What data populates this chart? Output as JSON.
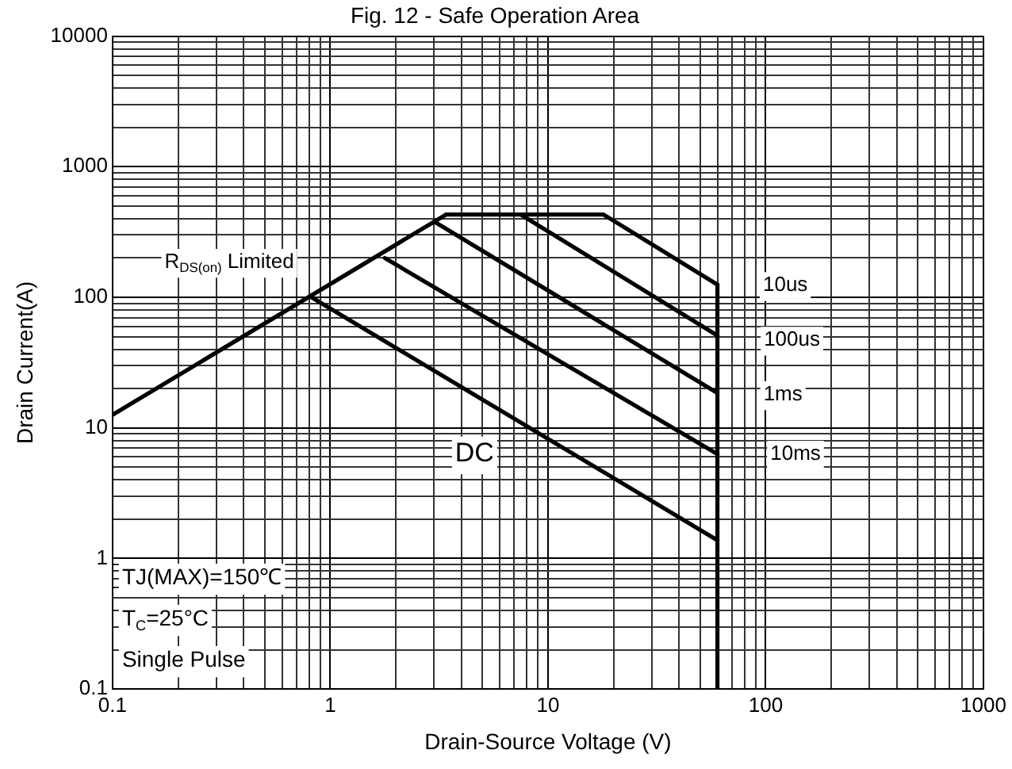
{
  "chart_data": {
    "type": "line",
    "title": "Fig. 12 - Safe Operation Area",
    "xlabel": "Drain-Source Voltage (V)",
    "ylabel": "Drain Current(A)",
    "log": "xy",
    "grid": true,
    "legend": false,
    "marker": "none",
    "line_style": "solid",
    "xlim": [
      0.1,
      1000
    ],
    "ylim": [
      0.1,
      10000
    ],
    "xticks": [
      0.1,
      {
        "value": 0.2,
        "label": null
      },
      {
        "value": 0.3,
        "label": null
      },
      {
        "value": 0.4,
        "label": null
      },
      {
        "value": 0.5,
        "label": null
      },
      {
        "value": 0.6,
        "label": null
      },
      {
        "value": 0.7,
        "label": null
      },
      {
        "value": 0.8,
        "label": null
      },
      {
        "value": 0.9,
        "label": null
      },
      1,
      {
        "value": 2,
        "label": null
      },
      {
        "value": 3,
        "label": null
      },
      {
        "value": 4,
        "label": null
      },
      {
        "value": 5,
        "label": null
      },
      {
        "value": 6,
        "label": null
      },
      {
        "value": 7,
        "label": null
      },
      {
        "value": 8,
        "label": null
      },
      {
        "value": 9,
        "label": null
      },
      10,
      {
        "value": 20,
        "label": null
      },
      {
        "value": 30,
        "label": null
      },
      {
        "value": 40,
        "label": null
      },
      {
        "value": 50,
        "label": null
      },
      {
        "value": 60,
        "label": null
      },
      {
        "value": 70,
        "label": null
      },
      {
        "value": 80,
        "label": null
      },
      {
        "value": 90,
        "label": null
      },
      100,
      {
        "value": 200,
        "label": null
      },
      {
        "value": 300,
        "label": null
      },
      {
        "value": 400,
        "label": null
      },
      {
        "value": 500,
        "label": null
      },
      {
        "value": 600,
        "label": null
      },
      {
        "value": 700,
        "label": null
      },
      {
        "value": 800,
        "label": null
      },
      {
        "value": 900,
        "label": null
      },
      1000
    ],
    "yticks": [
      0.1,
      {
        "value": 0.2,
        "label": null
      },
      {
        "value": 0.3,
        "label": null
      },
      {
        "value": 0.4,
        "label": null
      },
      {
        "value": 0.5,
        "label": null
      },
      {
        "value": 0.6,
        "label": null
      },
      {
        "value": 0.7,
        "label": null
      },
      {
        "value": 0.8,
        "label": null
      },
      {
        "value": 0.9,
        "label": null
      },
      1,
      {
        "value": 2,
        "label": null
      },
      {
        "value": 3,
        "label": null
      },
      {
        "value": 4,
        "label": null
      },
      {
        "value": 5,
        "label": null
      },
      {
        "value": 6,
        "label": null
      },
      {
        "value": 7,
        "label": null
      },
      {
        "value": 8,
        "label": null
      },
      {
        "value": 9,
        "label": null
      },
      10,
      {
        "value": 20,
        "label": null
      },
      {
        "value": 30,
        "label": null
      },
      {
        "value": 40,
        "label": null
      },
      {
        "value": 50,
        "label": null
      },
      {
        "value": 60,
        "label": null
      },
      {
        "value": 70,
        "label": null
      },
      {
        "value": 80,
        "label": null
      },
      {
        "value": 90,
        "label": null
      },
      100,
      {
        "value": 200,
        "label": null
      },
      {
        "value": 300,
        "label": null
      },
      {
        "value": 400,
        "label": null
      },
      {
        "value": 500,
        "label": null
      },
      {
        "value": 600,
        "label": null
      },
      {
        "value": 700,
        "label": null
      },
      {
        "value": 800,
        "label": null
      },
      {
        "value": 900,
        "label": null
      },
      1000,
      {
        "value": 2000,
        "label": null
      },
      {
        "value": 3000,
        "label": null
      },
      {
        "value": 4000,
        "label": null
      },
      {
        "value": 5000,
        "label": null
      },
      {
        "value": 6000,
        "label": null
      },
      {
        "value": 7000,
        "label": null
      },
      {
        "value": 8000,
        "label": null
      },
      {
        "value": 9000,
        "label": null
      },
      10000
    ],
    "series": [
      {
        "name": "R$_{DS(on)}$ Limited",
        "color": "#000000",
        "x": [
          0.1,
          3.4
        ],
        "values": [
          12.6,
          430
        ]
      },
      {
        "color": "#000000",
        "x": [
          3.4,
          18,
          60
        ],
        "values": [
          430,
          430,
          125
        ]
      },
      {
        "color": "#000000",
        "x": [
          7.5,
          60
        ],
        "values": [
          430,
          51
        ]
      },
      {
        "color": "#000000",
        "x": [
          3,
          60
        ],
        "values": [
          380,
          18.5
        ]
      },
      {
        "color": "#000000",
        "x": [
          1.78,
          60
        ],
        "values": [
          200,
          6.3
        ]
      },
      {
        "color": "#000000",
        "x": [
          0.82,
          60
        ],
        "values": [
          100,
          1.38
        ]
      },
      {
        "color": "#000000",
        "x": [
          60,
          60
        ],
        "values": [
          125,
          0.1
        ]
      }
    ],
    "annotations": [
      {
        "text": "10us",
        "x": 123,
        "y": 123
      },
      {
        "text": "100us",
        "x": 132,
        "y": 47
      },
      {
        "text": "1ms",
        "x": 120,
        "y": 18
      },
      {
        "text": "10ms",
        "x": 137,
        "y": 6.3
      },
      {
        "text": "DC",
        "x": 4.6,
        "y": 6.3
      },
      "TJ(MAX)=150℃",
      "T$_{C}$=25°C",
      "Single Pulse"
    ]
  }
}
